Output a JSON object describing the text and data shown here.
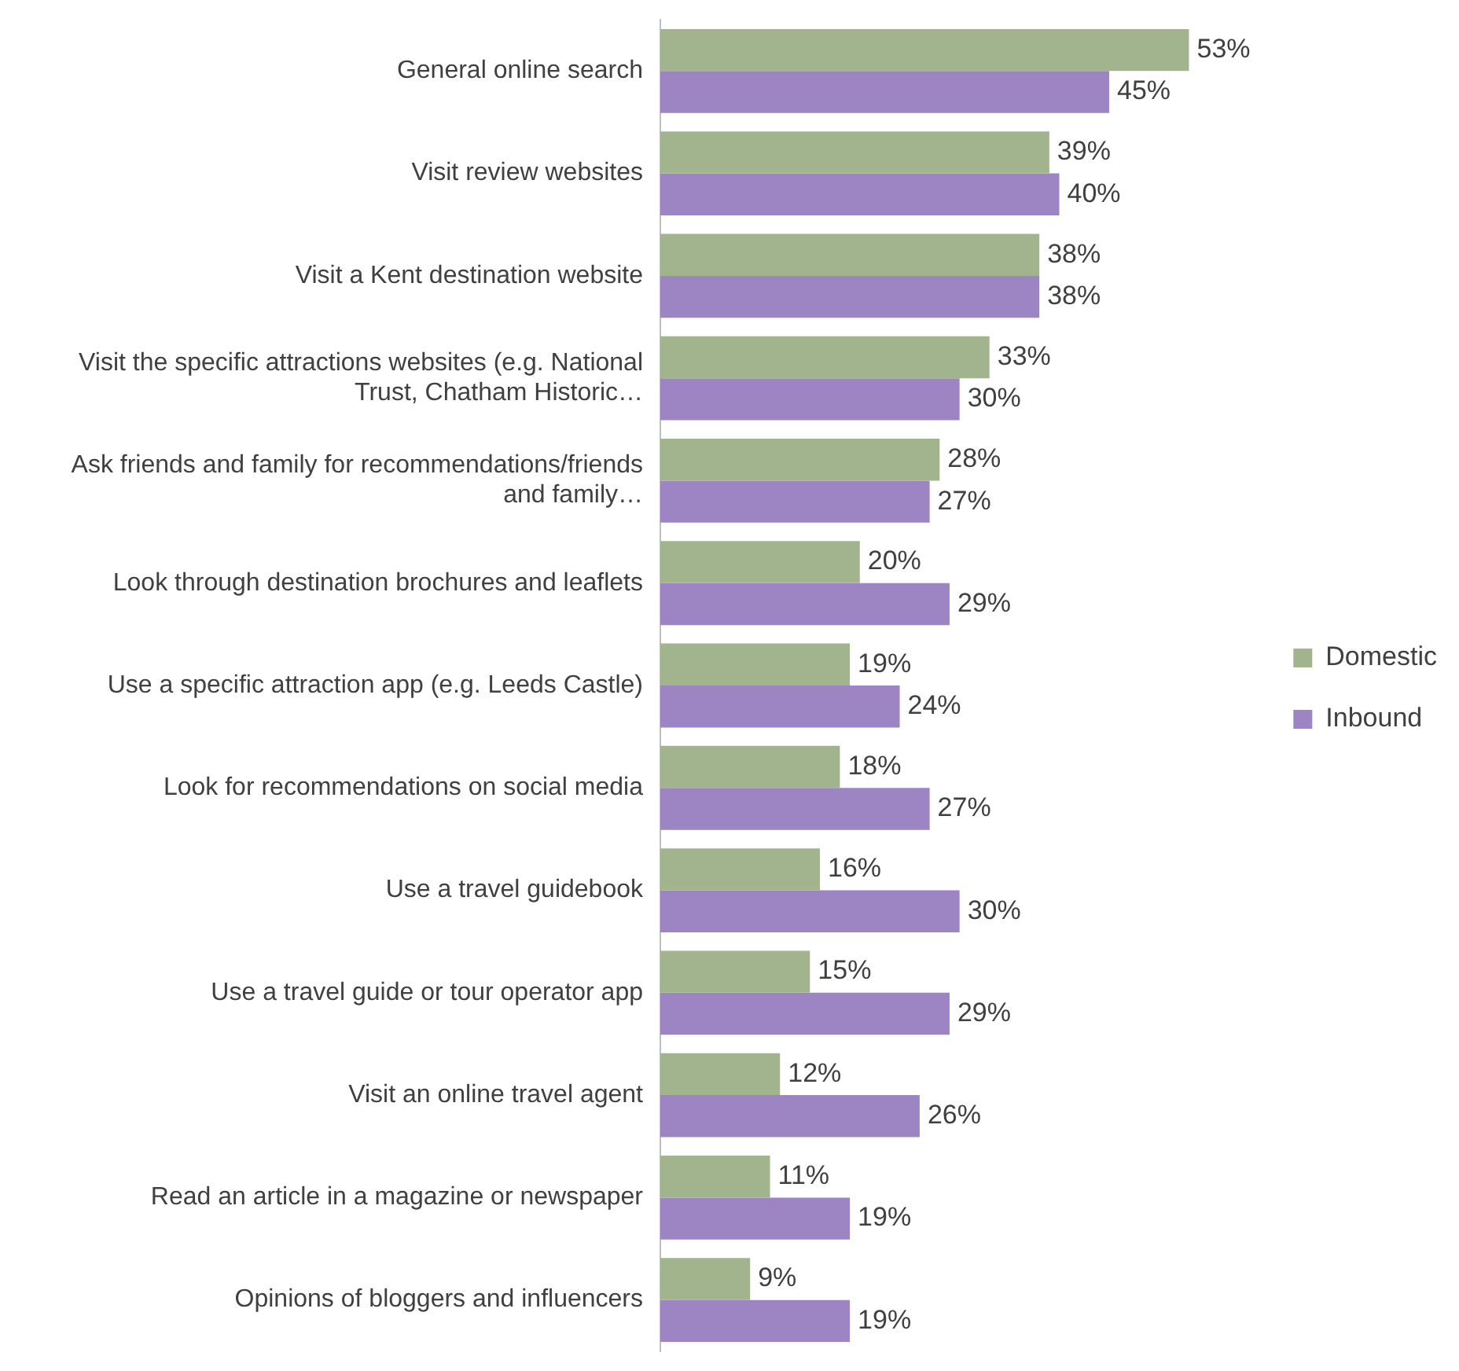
{
  "chart_data": {
    "type": "bar",
    "orientation": "horizontal",
    "data_labels": true,
    "legend": "right",
    "tick_labels": "y",
    "categories": [
      "General online search",
      "Visit review websites",
      "Visit a Kent destination website",
      "Visit the specific attractions websites (e.g. National Trust, Chatham Historic…",
      "Ask friends and family for recommendations/friends and family…",
      "Look through destination brochures and leaflets",
      "Use a specific attraction app (e.g. Leeds Castle)",
      "Look for recommendations on social media",
      "Use a travel guidebook",
      "Use a travel guide or tour operator app",
      "Visit an online travel agent",
      "Read an article in a magazine or newspaper",
      "Opinions of bloggers and influencers"
    ],
    "series": [
      {
        "name": "Domestic",
        "color": "#a2b48e",
        "values": [
          53,
          39,
          38,
          33,
          28,
          20,
          19,
          18,
          16,
          15,
          12,
          11,
          9
        ],
        "value_labels": [
          "53%",
          "39%",
          "38%",
          "33%",
          "28%",
          "20%",
          "19%",
          "18%",
          "16%",
          "15%",
          "12%",
          "11%",
          "9%"
        ]
      },
      {
        "name": "Inbound",
        "color": "#9d85c3",
        "values": [
          45,
          40,
          38,
          30,
          27,
          29,
          24,
          27,
          30,
          29,
          26,
          19,
          19
        ],
        "value_labels": [
          "45%",
          "40%",
          "38%",
          "30%",
          "27%",
          "29%",
          "24%",
          "27%",
          "30%",
          "29%",
          "26%",
          "19%",
          "19%"
        ]
      }
    ]
  }
}
